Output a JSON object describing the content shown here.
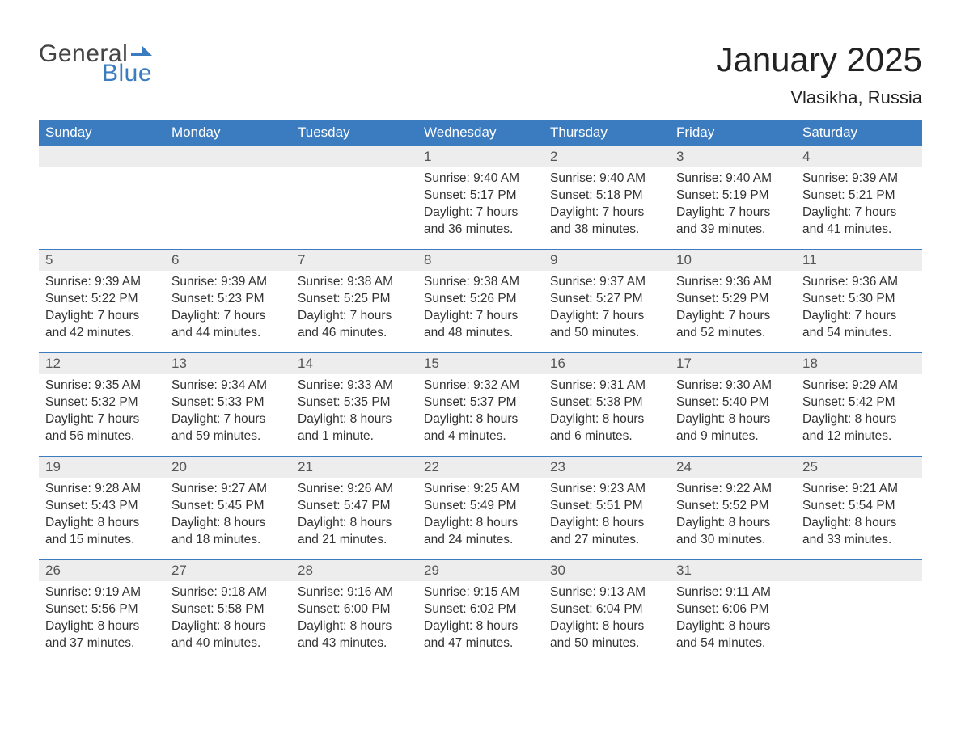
{
  "logo": {
    "text_top": "General",
    "text_bottom": "Blue"
  },
  "title": {
    "month": "January 2025",
    "location": "Vlasikha, Russia"
  },
  "colors": {
    "header_bg": "#3b7bbf",
    "header_text": "#ffffff",
    "strip_bg": "#ededed",
    "cell_border": "#3b7bbf",
    "body_text": "#333333",
    "logo_gray": "#444444",
    "logo_blue": "#3b7bbf",
    "background": "#ffffff"
  },
  "typography": {
    "title_fontsize": 42,
    "location_fontsize": 22,
    "dayhead_fontsize": 17,
    "daynum_fontsize": 17,
    "body_fontsize": 15.5,
    "font_family": "Arial"
  },
  "day_headers": [
    "Sunday",
    "Monday",
    "Tuesday",
    "Wednesday",
    "Thursday",
    "Friday",
    "Saturday"
  ],
  "labels": {
    "sunrise": "Sunrise:",
    "sunset": "Sunset:",
    "daylight": "Daylight:"
  },
  "weeks": [
    [
      null,
      null,
      null,
      {
        "num": "1",
        "sunrise": "9:40 AM",
        "sunset": "5:17 PM",
        "daylight": "7 hours and 36 minutes."
      },
      {
        "num": "2",
        "sunrise": "9:40 AM",
        "sunset": "5:18 PM",
        "daylight": "7 hours and 38 minutes."
      },
      {
        "num": "3",
        "sunrise": "9:40 AM",
        "sunset": "5:19 PM",
        "daylight": "7 hours and 39 minutes."
      },
      {
        "num": "4",
        "sunrise": "9:39 AM",
        "sunset": "5:21 PM",
        "daylight": "7 hours and 41 minutes."
      }
    ],
    [
      {
        "num": "5",
        "sunrise": "9:39 AM",
        "sunset": "5:22 PM",
        "daylight": "7 hours and 42 minutes."
      },
      {
        "num": "6",
        "sunrise": "9:39 AM",
        "sunset": "5:23 PM",
        "daylight": "7 hours and 44 minutes."
      },
      {
        "num": "7",
        "sunrise": "9:38 AM",
        "sunset": "5:25 PM",
        "daylight": "7 hours and 46 minutes."
      },
      {
        "num": "8",
        "sunrise": "9:38 AM",
        "sunset": "5:26 PM",
        "daylight": "7 hours and 48 minutes."
      },
      {
        "num": "9",
        "sunrise": "9:37 AM",
        "sunset": "5:27 PM",
        "daylight": "7 hours and 50 minutes."
      },
      {
        "num": "10",
        "sunrise": "9:36 AM",
        "sunset": "5:29 PM",
        "daylight": "7 hours and 52 minutes."
      },
      {
        "num": "11",
        "sunrise": "9:36 AM",
        "sunset": "5:30 PM",
        "daylight": "7 hours and 54 minutes."
      }
    ],
    [
      {
        "num": "12",
        "sunrise": "9:35 AM",
        "sunset": "5:32 PM",
        "daylight": "7 hours and 56 minutes."
      },
      {
        "num": "13",
        "sunrise": "9:34 AM",
        "sunset": "5:33 PM",
        "daylight": "7 hours and 59 minutes."
      },
      {
        "num": "14",
        "sunrise": "9:33 AM",
        "sunset": "5:35 PM",
        "daylight": "8 hours and 1 minute."
      },
      {
        "num": "15",
        "sunrise": "9:32 AM",
        "sunset": "5:37 PM",
        "daylight": "8 hours and 4 minutes."
      },
      {
        "num": "16",
        "sunrise": "9:31 AM",
        "sunset": "5:38 PM",
        "daylight": "8 hours and 6 minutes."
      },
      {
        "num": "17",
        "sunrise": "9:30 AM",
        "sunset": "5:40 PM",
        "daylight": "8 hours and 9 minutes."
      },
      {
        "num": "18",
        "sunrise": "9:29 AM",
        "sunset": "5:42 PM",
        "daylight": "8 hours and 12 minutes."
      }
    ],
    [
      {
        "num": "19",
        "sunrise": "9:28 AM",
        "sunset": "5:43 PM",
        "daylight": "8 hours and 15 minutes."
      },
      {
        "num": "20",
        "sunrise": "9:27 AM",
        "sunset": "5:45 PM",
        "daylight": "8 hours and 18 minutes."
      },
      {
        "num": "21",
        "sunrise": "9:26 AM",
        "sunset": "5:47 PM",
        "daylight": "8 hours and 21 minutes."
      },
      {
        "num": "22",
        "sunrise": "9:25 AM",
        "sunset": "5:49 PM",
        "daylight": "8 hours and 24 minutes."
      },
      {
        "num": "23",
        "sunrise": "9:23 AM",
        "sunset": "5:51 PM",
        "daylight": "8 hours and 27 minutes."
      },
      {
        "num": "24",
        "sunrise": "9:22 AM",
        "sunset": "5:52 PM",
        "daylight": "8 hours and 30 minutes."
      },
      {
        "num": "25",
        "sunrise": "9:21 AM",
        "sunset": "5:54 PM",
        "daylight": "8 hours and 33 minutes."
      }
    ],
    [
      {
        "num": "26",
        "sunrise": "9:19 AM",
        "sunset": "5:56 PM",
        "daylight": "8 hours and 37 minutes."
      },
      {
        "num": "27",
        "sunrise": "9:18 AM",
        "sunset": "5:58 PM",
        "daylight": "8 hours and 40 minutes."
      },
      {
        "num": "28",
        "sunrise": "9:16 AM",
        "sunset": "6:00 PM",
        "daylight": "8 hours and 43 minutes."
      },
      {
        "num": "29",
        "sunrise": "9:15 AM",
        "sunset": "6:02 PM",
        "daylight": "8 hours and 47 minutes."
      },
      {
        "num": "30",
        "sunrise": "9:13 AM",
        "sunset": "6:04 PM",
        "daylight": "8 hours and 50 minutes."
      },
      {
        "num": "31",
        "sunrise": "9:11 AM",
        "sunset": "6:06 PM",
        "daylight": "8 hours and 54 minutes."
      },
      null
    ]
  ]
}
